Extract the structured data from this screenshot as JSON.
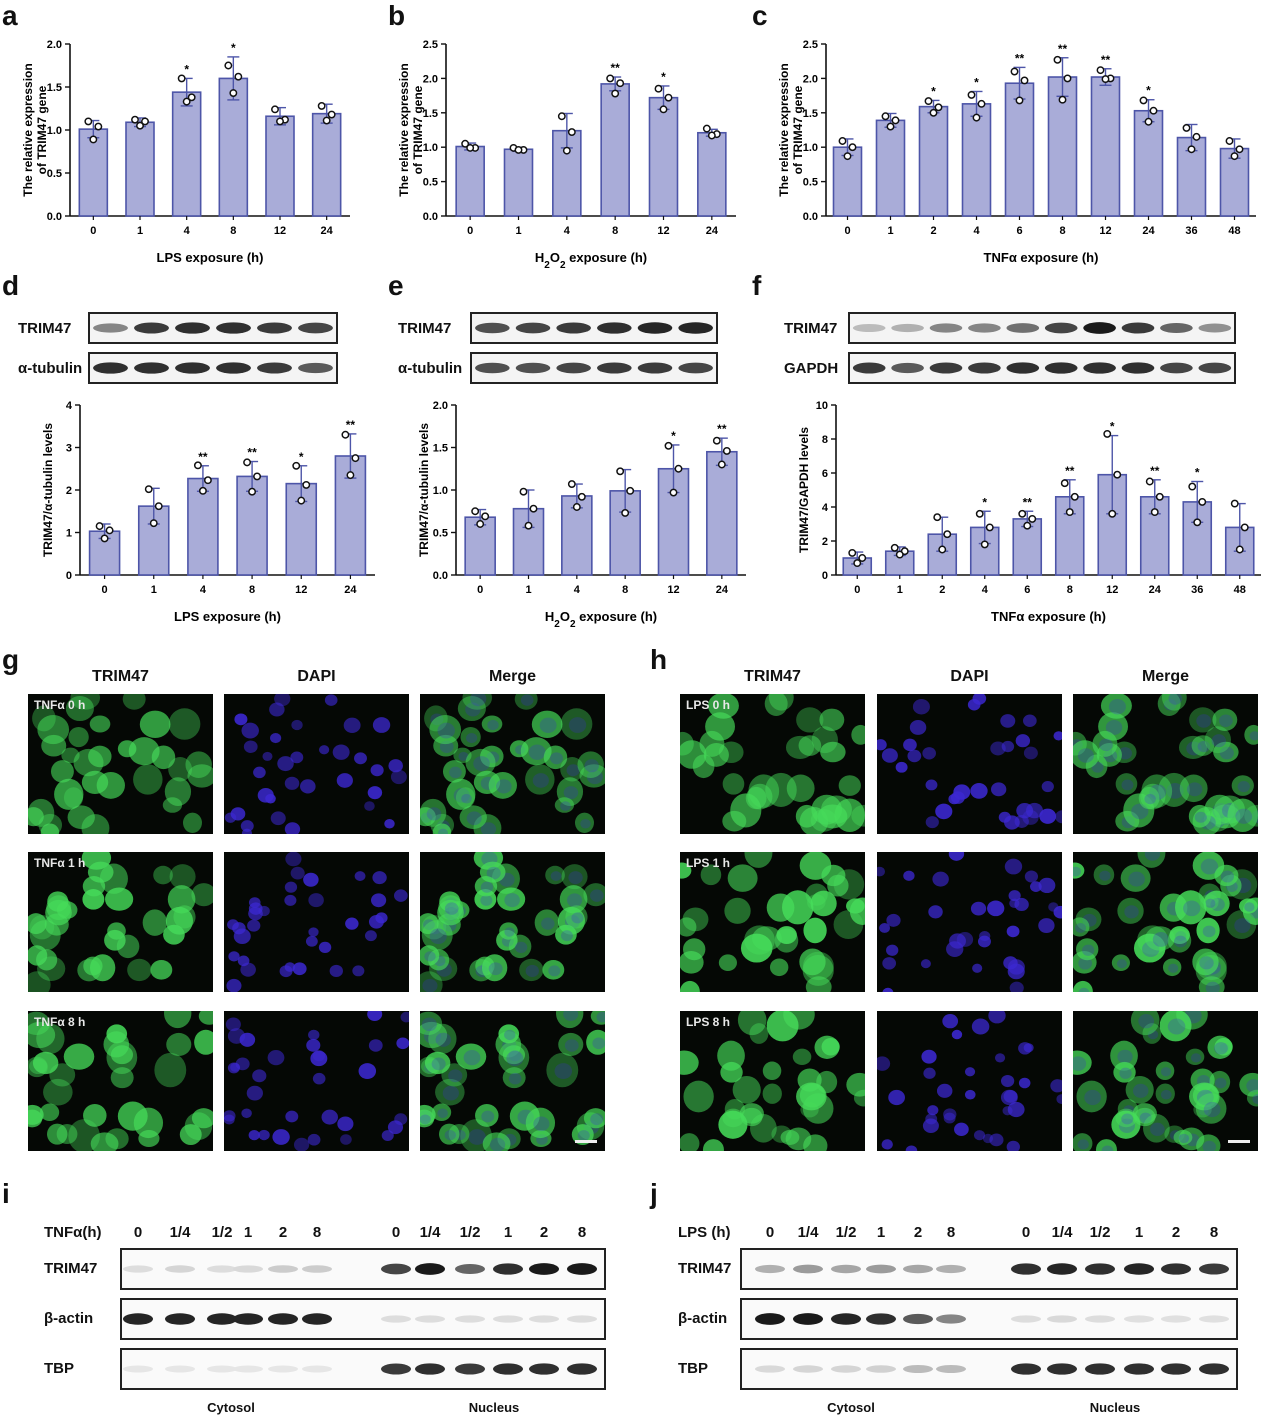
{
  "panels": {
    "a": "a",
    "b": "b",
    "c": "c",
    "d": "d",
    "e": "e",
    "f": "f",
    "g": "g",
    "h": "h",
    "i": "i",
    "j": "j"
  },
  "colors": {
    "bar_fill": "#a9acd8",
    "bar_stroke": "#4d55a8",
    "text": "#111111",
    "green": "#3fd05a",
    "blue": "#3a2fc8"
  },
  "chart_data": [
    {
      "id": "a",
      "type": "bar",
      "categories": [
        "0",
        "1",
        "4",
        "8",
        "12",
        "24"
      ],
      "values": [
        1.01,
        1.09,
        1.44,
        1.6,
        1.16,
        1.19
      ],
      "errors": [
        0.1,
        0.05,
        0.16,
        0.25,
        0.1,
        0.11
      ],
      "points": [
        [
          1.1,
          1.04,
          0.89
        ],
        [
          1.12,
          1.1,
          1.05
        ],
        [
          1.6,
          1.38,
          1.33
        ],
        [
          1.75,
          1.62,
          1.43
        ],
        [
          1.24,
          1.12,
          1.1
        ],
        [
          1.28,
          1.18,
          1.11
        ]
      ],
      "sig": [
        "",
        "",
        "*",
        "*",
        "",
        ""
      ],
      "xlabel": "LPS exposure (h)",
      "ylabel": "The relative expression of TRIM47 gene",
      "ylabel_lines": [
        "The relative expression",
        "of TRIM47 gene"
      ],
      "ylim": [
        0,
        2.0
      ],
      "yticks": [
        "0.0",
        "0.5",
        "1.0",
        "1.5",
        "2.0"
      ]
    },
    {
      "id": "b",
      "type": "bar",
      "categories": [
        "0",
        "1",
        "4",
        "8",
        "12",
        "24"
      ],
      "values": [
        1.01,
        0.97,
        1.24,
        1.92,
        1.72,
        1.21
      ],
      "errors": [
        0.05,
        0.03,
        0.25,
        0.1,
        0.17,
        0.05
      ],
      "points": [
        [
          1.05,
          0.99,
          0.99
        ],
        [
          0.99,
          0.96,
          0.96
        ],
        [
          1.45,
          1.22,
          0.95
        ],
        [
          2.0,
          1.93,
          1.78
        ],
        [
          1.85,
          1.72,
          1.55
        ],
        [
          1.27,
          1.19,
          1.17
        ]
      ],
      "sig": [
        "",
        "",
        "",
        "**",
        "*",
        ""
      ],
      "xlabel": "H2O2 exposure (h)",
      "ylabel": "The relative expression of TRIM47 gene",
      "ylabel_lines": [
        "The relative expression",
        "of TRIM47 gene"
      ],
      "ylim": [
        0,
        2.5
      ],
      "yticks": [
        "0.0",
        "0.5",
        "1.0",
        "1.5",
        "2.0",
        "2.5"
      ]
    },
    {
      "id": "c",
      "type": "bar",
      "categories": [
        "0",
        "1",
        "2",
        "4",
        "6",
        "8",
        "12",
        "24",
        "36",
        "48"
      ],
      "values": [
        1.0,
        1.39,
        1.59,
        1.63,
        1.93,
        2.02,
        2.02,
        1.53,
        1.14,
        0.98
      ],
      "errors": [
        0.12,
        0.1,
        0.09,
        0.18,
        0.23,
        0.28,
        0.12,
        0.16,
        0.19,
        0.14
      ],
      "points": [
        [
          1.09,
          1.0,
          0.87
        ],
        [
          1.45,
          1.39,
          1.3
        ],
        [
          1.67,
          1.58,
          1.5
        ],
        [
          1.76,
          1.63,
          1.43
        ],
        [
          2.1,
          1.97,
          1.68
        ],
        [
          2.27,
          2.0,
          1.69
        ],
        [
          2.12,
          2.0,
          1.99
        ],
        [
          1.68,
          1.53,
          1.37
        ],
        [
          1.28,
          1.15,
          0.97
        ],
        [
          1.09,
          0.97,
          0.87
        ]
      ],
      "sig": [
        "",
        "",
        "*",
        "*",
        "**",
        "**",
        "**",
        "*",
        "",
        ""
      ],
      "xlabel": "TNFα exposure (h)",
      "ylabel": "The relative expression of TRIM47 gene",
      "ylabel_lines": [
        "The relative expression",
        "of TRIM47 gene"
      ],
      "ylim": [
        0,
        2.5
      ],
      "yticks": [
        "0.0",
        "0.5",
        "1.0",
        "1.5",
        "2.0",
        "2.5"
      ]
    },
    {
      "id": "d",
      "type": "bar",
      "categories": [
        "0",
        "1",
        "4",
        "8",
        "12",
        "24"
      ],
      "values": [
        1.03,
        1.62,
        2.27,
        2.32,
        2.15,
        2.8
      ],
      "errors": [
        0.17,
        0.42,
        0.3,
        0.35,
        0.42,
        0.52
      ],
      "points": [
        [
          1.15,
          1.05,
          0.86
        ],
        [
          2.02,
          1.62,
          1.22
        ],
        [
          2.58,
          2.23,
          1.98
        ],
        [
          2.65,
          2.32,
          1.96
        ],
        [
          2.57,
          2.12,
          1.75
        ],
        [
          3.3,
          2.75,
          2.35
        ]
      ],
      "sig": [
        "",
        "",
        "**",
        "**",
        "*",
        "**"
      ],
      "xlabel": "LPS exposure (h)",
      "ylabel": "TRIM47/α-tubulin levels",
      "ylim": [
        0,
        4
      ],
      "yticks": [
        "0",
        "1",
        "2",
        "3",
        "4"
      ],
      "blot_rows": [
        "TRIM47",
        "α-tubulin"
      ]
    },
    {
      "id": "e",
      "type": "bar",
      "categories": [
        "0",
        "1",
        "4",
        "8",
        "12",
        "24"
      ],
      "values": [
        0.68,
        0.78,
        0.93,
        0.99,
        1.25,
        1.45
      ],
      "errors": [
        0.09,
        0.22,
        0.14,
        0.25,
        0.28,
        0.16
      ],
      "points": [
        [
          0.75,
          0.69,
          0.6
        ],
        [
          0.98,
          0.78,
          0.58
        ],
        [
          1.07,
          0.92,
          0.8
        ],
        [
          1.22,
          0.99,
          0.73
        ],
        [
          1.52,
          1.25,
          0.97
        ],
        [
          1.58,
          1.46,
          1.3
        ]
      ],
      "sig": [
        "",
        "",
        "",
        "",
        "*",
        "**"
      ],
      "xlabel": "H2O2 exposure (h)",
      "ylabel": "TRIM47/α-tubulin levels",
      "ylim": [
        0,
        2.0
      ],
      "yticks": [
        "0.0",
        "0.5",
        "1.0",
        "1.5",
        "2.0"
      ],
      "blot_rows": [
        "TRIM47",
        "α-tubulin"
      ]
    },
    {
      "id": "f",
      "type": "bar",
      "categories": [
        "0",
        "1",
        "2",
        "4",
        "6",
        "8",
        "12",
        "24",
        "36",
        "48"
      ],
      "values": [
        1.0,
        1.4,
        2.4,
        2.8,
        3.3,
        4.6,
        5.9,
        4.6,
        4.3,
        2.8
      ],
      "errors": [
        0.35,
        0.25,
        1.0,
        0.95,
        0.45,
        1.0,
        2.3,
        1.0,
        1.2,
        1.4
      ],
      "points": [
        [
          1.3,
          1.0,
          0.7
        ],
        [
          1.6,
          1.4,
          1.2
        ],
        [
          3.4,
          2.4,
          1.5
        ],
        [
          3.6,
          2.8,
          1.8
        ],
        [
          3.6,
          3.3,
          2.9
        ],
        [
          5.4,
          4.6,
          3.7
        ],
        [
          8.3,
          5.9,
          3.6
        ],
        [
          5.5,
          4.6,
          3.7
        ],
        [
          5.2,
          4.3,
          3.1
        ],
        [
          4.2,
          2.8,
          1.5
        ]
      ],
      "sig": [
        "",
        "",
        "",
        "*",
        "**",
        "**",
        "*",
        "**",
        "*",
        ""
      ],
      "xlabel": "TNFα exposure (h)",
      "ylabel": "TRIM47/GAPDH levels",
      "ylim": [
        0,
        10
      ],
      "yticks": [
        "0",
        "2",
        "4",
        "6",
        "8",
        "10"
      ],
      "blot_rows": [
        "TRIM47",
        "GAPDH"
      ]
    }
  ],
  "blots": {
    "d": {
      "rows": [
        {
          "label": "TRIM47",
          "intensity": [
            0.45,
            0.8,
            0.85,
            0.85,
            0.8,
            0.75
          ]
        },
        {
          "label": "α-tubulin",
          "intensity": [
            0.85,
            0.85,
            0.85,
            0.85,
            0.8,
            0.65
          ]
        }
      ]
    },
    "e": {
      "rows": [
        {
          "label": "TRIM47",
          "intensity": [
            0.7,
            0.75,
            0.8,
            0.85,
            0.9,
            0.9
          ]
        },
        {
          "label": "α-tubulin",
          "intensity": [
            0.7,
            0.7,
            0.75,
            0.8,
            0.8,
            0.75
          ]
        }
      ]
    },
    "f": {
      "rows": [
        {
          "label": "TRIM47",
          "intensity": [
            0.2,
            0.25,
            0.45,
            0.45,
            0.55,
            0.75,
            0.95,
            0.8,
            0.6,
            0.4
          ]
        },
        {
          "label": "GAPDH",
          "intensity": [
            0.8,
            0.65,
            0.8,
            0.8,
            0.85,
            0.85,
            0.85,
            0.85,
            0.75,
            0.75
          ]
        }
      ]
    }
  },
  "micro_g": {
    "headers": [
      "TRIM47",
      "DAPI",
      "Merge"
    ],
    "rows": [
      "TNFα 0 h",
      "TNFα 1 h",
      "TNFα 8 h"
    ]
  },
  "micro_h": {
    "headers": [
      "TRIM47",
      "DAPI",
      "Merge"
    ],
    "rows": [
      "LPS 0 h",
      "LPS 1 h",
      "LPS 8 h"
    ]
  },
  "frac_i": {
    "treatment_label": "TNFα(h)",
    "lanes": [
      "0",
      "1/4",
      "1/2",
      "1",
      "2",
      "8",
      "0",
      "1/4",
      "1/2",
      "1",
      "2",
      "8"
    ],
    "rows": [
      {
        "label": "TRIM47",
        "intensity": [
          0.04,
          0.08,
          0.04,
          0.06,
          0.12,
          0.12,
          0.75,
          0.95,
          0.6,
          0.85,
          0.95,
          0.95
        ]
      },
      {
        "label": "β-actin",
        "intensity": [
          0.9,
          0.9,
          0.9,
          0.9,
          0.9,
          0.9,
          0.04,
          0.04,
          0.04,
          0.04,
          0.04,
          0.04
        ]
      },
      {
        "label": "TBP",
        "intensity": [
          0.0,
          0.0,
          0.0,
          0.0,
          0.0,
          0.0,
          0.8,
          0.85,
          0.8,
          0.85,
          0.85,
          0.85
        ]
      }
    ],
    "fractions": [
      "Cytosol",
      "Nucleus"
    ]
  },
  "frac_j": {
    "treatment_label": "LPS  (h)",
    "lanes": [
      "0",
      "1/4",
      "1/2",
      "1",
      "2",
      "8",
      "0",
      "1/4",
      "1/2",
      "1",
      "2",
      "8"
    ],
    "rows": [
      {
        "label": "TRIM47",
        "intensity": [
          0.25,
          0.35,
          0.3,
          0.35,
          0.3,
          0.25,
          0.85,
          0.9,
          0.85,
          0.9,
          0.85,
          0.8
        ]
      },
      {
        "label": "β-actin",
        "intensity": [
          0.95,
          0.95,
          0.9,
          0.85,
          0.65,
          0.45,
          0.04,
          0.06,
          0.04,
          0.03,
          0.03,
          0.03
        ]
      },
      {
        "label": "TBP",
        "intensity": [
          0.06,
          0.08,
          0.08,
          0.1,
          0.2,
          0.2,
          0.85,
          0.85,
          0.85,
          0.85,
          0.85,
          0.85
        ]
      }
    ],
    "fractions": [
      "Cytosol",
      "Nucleus"
    ]
  }
}
